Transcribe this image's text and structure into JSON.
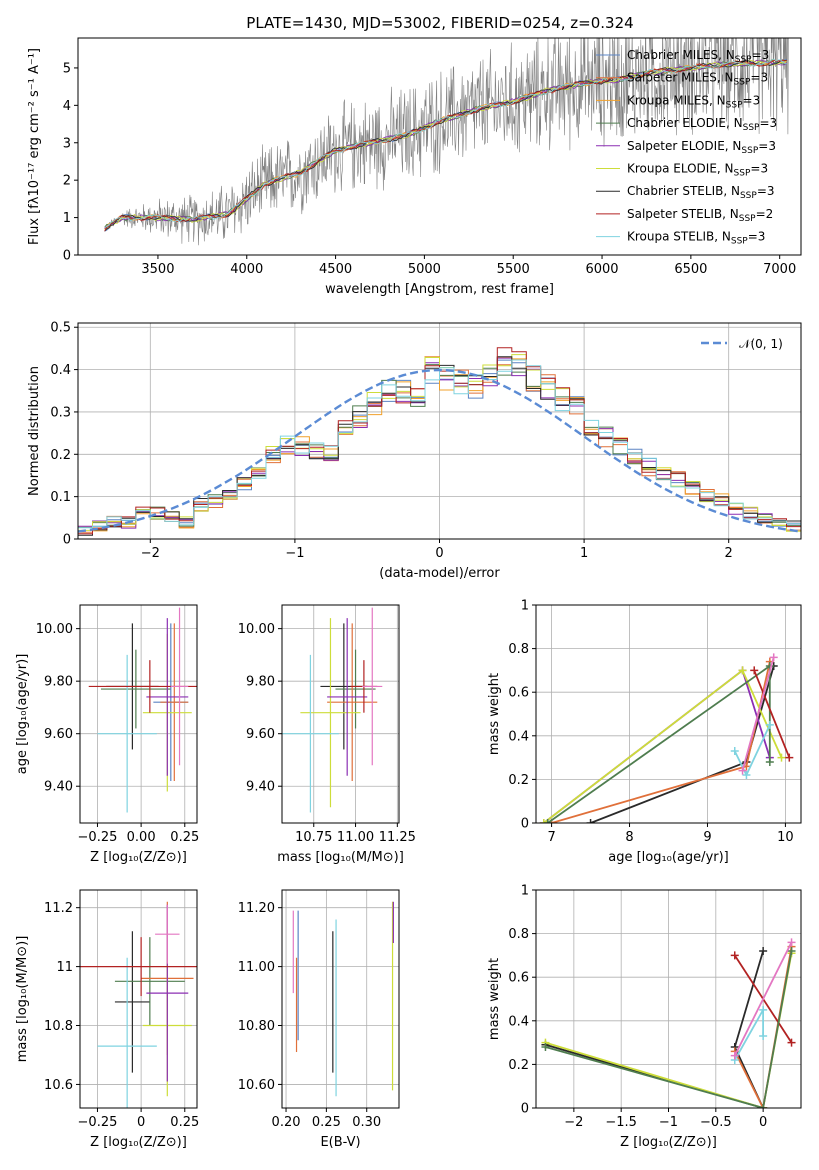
{
  "figure": {
    "title": "PLATE=1430, MJD=53002, FIBERID=0254, z=0.324"
  },
  "models": [
    {
      "name": "Chabrier MILES",
      "nssp": "3",
      "color": "#5b84c4"
    },
    {
      "name": "Salpeter MILES",
      "nssp": "3",
      "color": "#e0703a"
    },
    {
      "name": "Kroupa MILES",
      "nssp": "3",
      "color": "#f1a12b"
    },
    {
      "name": "Chabrier ELODIE",
      "nssp": "3",
      "color": "#4f7d4f"
    },
    {
      "name": "Salpeter ELODIE",
      "nssp": "3",
      "color": "#8b2fb3"
    },
    {
      "name": "Kroupa ELODIE",
      "nssp": "3",
      "color": "#cddd3a"
    },
    {
      "name": "Chabrier STELIB",
      "nssp": "3",
      "color": "#2a2a2a"
    },
    {
      "name": "Salpeter STELIB",
      "nssp": "2",
      "color": "#b22222"
    },
    {
      "name": "Kroupa STELIB",
      "nssp": "3",
      "color": "#7fd3e0"
    }
  ],
  "extra_colors": {
    "pink": "#e377c2",
    "gray_dark": "#555555",
    "data": "#808080",
    "gauss": "#5b8bd4"
  },
  "chart_data": [
    {
      "id": "spectrum",
      "type": "line",
      "xlabel": "wavelength [Angstrom, rest frame]",
      "ylabel": "Flux [fλ10⁻¹⁷ erg cm⁻² s⁻¹ A⁻¹]",
      "xlim": [
        3050,
        7120
      ],
      "ylim": [
        0,
        5.8
      ],
      "xticks": [
        3500,
        4000,
        4500,
        5000,
        5500,
        6000,
        6500,
        7000
      ],
      "yticks": [
        0,
        1,
        2,
        3,
        4,
        5
      ],
      "wave_range": [
        3200,
        7050
      ],
      "model_continuum": [
        [
          3200,
          0.7
        ],
        [
          3300,
          1.0
        ],
        [
          3500,
          1.0
        ],
        [
          3700,
          0.95
        ],
        [
          3900,
          1.1
        ],
        [
          4000,
          1.5
        ],
        [
          4100,
          1.9
        ],
        [
          4300,
          2.2
        ],
        [
          4500,
          2.8
        ],
        [
          4700,
          3.0
        ],
        [
          4900,
          3.2
        ],
        [
          5100,
          3.6
        ],
        [
          5300,
          3.9
        ],
        [
          5500,
          4.1
        ],
        [
          5700,
          4.4
        ],
        [
          5900,
          4.6
        ],
        [
          6100,
          4.7
        ],
        [
          6300,
          4.9
        ],
        [
          6500,
          5.0
        ],
        [
          6700,
          5.1
        ],
        [
          7000,
          5.15
        ]
      ],
      "data_noise": [
        [
          3200,
          0.1
        ],
        [
          3500,
          0.6
        ],
        [
          3800,
          0.9
        ],
        [
          4000,
          1.1
        ],
        [
          4500,
          1.4
        ],
        [
          5000,
          1.6
        ],
        [
          5500,
          1.8
        ],
        [
          6000,
          2.0
        ],
        [
          6500,
          2.1
        ],
        [
          7000,
          2.2
        ]
      ]
    },
    {
      "id": "residuals",
      "type": "line",
      "xlabel": "(data-model)/error",
      "ylabel": "Normed distribution",
      "xlim": [
        -2.5,
        2.5
      ],
      "ylim": [
        0,
        0.51
      ],
      "xticks": [
        -2,
        -1,
        0,
        1,
        2
      ],
      "yticks": [
        0.0,
        0.1,
        0.2,
        0.3,
        0.4,
        0.5
      ],
      "legend": "𝒩(0, 1)",
      "bin_edges_start": -2.5,
      "bin_width": 0.1,
      "hist_values": [
        0.02,
        0.03,
        0.04,
        0.04,
        0.07,
        0.06,
        0.05,
        0.04,
        0.08,
        0.09,
        0.11,
        0.13,
        0.15,
        0.2,
        0.22,
        0.22,
        0.21,
        0.2,
        0.26,
        0.29,
        0.32,
        0.35,
        0.35,
        0.34,
        0.4,
        0.38,
        0.37,
        0.36,
        0.39,
        0.42,
        0.41,
        0.38,
        0.36,
        0.33,
        0.31,
        0.26,
        0.24,
        0.22,
        0.19,
        0.17,
        0.16,
        0.14,
        0.12,
        0.1,
        0.09,
        0.07,
        0.06,
        0.05,
        0.04,
        0.03
      ]
    },
    {
      "id": "age-vs-Z",
      "type": "scatter",
      "xlabel": "Z [log₁₀(Z/Z⊙)]",
      "ylabel": "age  [log₁₀(age/yr)]",
      "xlim": [
        -0.35,
        0.32
      ],
      "ylim": [
        9.26,
        10.09
      ],
      "xticks": [
        -0.25,
        0.0,
        0.25
      ],
      "yticks": [
        9.4,
        9.6,
        9.8,
        10.0
      ],
      "points": [
        {
          "x": -0.05,
          "y": 9.78,
          "xerr": 0.15,
          "yerr": 0.24,
          "c": 6
        },
        {
          "x": -0.03,
          "y": 9.77,
          "xerr": 0.2,
          "yerr": 0.15,
          "c": 3
        },
        {
          "x": 0.17,
          "y": 9.72,
          "xerr": 0.1,
          "yerr": 0.3,
          "c": 0
        },
        {
          "x": 0.19,
          "y": 9.72,
          "xerr": 0.08,
          "yerr": 0.3,
          "c": 1
        },
        {
          "x": 0.15,
          "y": 9.68,
          "xerr": 0.14,
          "yerr": 0.3,
          "c": 5
        },
        {
          "x": 0.15,
          "y": 9.74,
          "xerr": 0.12,
          "yerr": 0.3,
          "c": 4
        },
        {
          "x": -0.08,
          "y": 9.6,
          "xerr": 0.17,
          "yerr": 0.3,
          "c": 8
        },
        {
          "x": 0.05,
          "y": 9.78,
          "xerr": 0.35,
          "yerr": 0.1,
          "c": 7
        },
        {
          "x": 0.22,
          "y": 9.78,
          "xerr": 0.05,
          "yerr": 0.3,
          "c": -1
        }
      ]
    },
    {
      "id": "age-vs-mass",
      "type": "scatter",
      "xlabel": "mass [log₁₀(M/M⊙)]",
      "ylabel": "",
      "xlim": [
        10.56,
        11.26
      ],
      "ylim": [
        9.26,
        10.09
      ],
      "xticks": [
        10.75,
        11.0,
        11.25
      ],
      "yticks": [
        9.4,
        9.6,
        9.8,
        10.0
      ],
      "points": [
        {
          "x": 10.93,
          "y": 9.78,
          "xerr": 0.14,
          "yerr": 0.24,
          "c": 6
        },
        {
          "x": 11.0,
          "y": 9.77,
          "xerr": 0.12,
          "yerr": 0.15,
          "c": 3
        },
        {
          "x": 10.98,
          "y": 9.72,
          "xerr": 0.15,
          "yerr": 0.3,
          "c": 1
        },
        {
          "x": 10.85,
          "y": 9.68,
          "xerr": 0.18,
          "yerr": 0.36,
          "c": 5
        },
        {
          "x": 10.95,
          "y": 9.74,
          "xerr": 0.12,
          "yerr": 0.3,
          "c": 4
        },
        {
          "x": 10.73,
          "y": 9.6,
          "xerr": 0.17,
          "yerr": 0.3,
          "c": 8
        },
        {
          "x": 11.05,
          "y": 9.78,
          "xerr": 0.08,
          "yerr": 0.1,
          "c": 7
        },
        {
          "x": 11.1,
          "y": 9.78,
          "xerr": 0.06,
          "yerr": 0.3,
          "c": -1
        }
      ]
    },
    {
      "id": "weight-vs-age",
      "type": "line",
      "xlabel": "age  [log₁₀(age/yr)]",
      "ylabel": "mass weight",
      "xlim": [
        6.8,
        10.2
      ],
      "ylim": [
        0,
        1.0
      ],
      "xticks": [
        7,
        8,
        9,
        10
      ],
      "yticks": [
        0.0,
        0.2,
        0.4,
        0.6,
        0.8,
        1.0
      ],
      "series": [
        {
          "c": 6,
          "pts": [
            [
              7.5,
              0.0
            ],
            [
              9.5,
              0.28
            ],
            [
              9.85,
              0.72
            ]
          ]
        },
        {
          "c": 1,
          "pts": [
            [
              7.0,
              0.0
            ],
            [
              9.5,
              0.26
            ],
            [
              9.8,
              0.74
            ]
          ]
        },
        {
          "c": 4,
          "pts": [
            [
              6.9,
              0.0
            ],
            [
              9.45,
              0.7
            ],
            [
              9.8,
              0.3
            ]
          ]
        },
        {
          "c": 5,
          "pts": [
            [
              6.9,
              0.0
            ],
            [
              9.45,
              0.7
            ],
            [
              9.95,
              0.3
            ]
          ]
        },
        {
          "c": 3,
          "pts": [
            [
              6.95,
              0.0
            ],
            [
              9.8,
              0.72
            ],
            [
              9.8,
              0.28
            ]
          ]
        },
        {
          "c": 7,
          "pts": [
            [
              9.6,
              0.7
            ],
            [
              10.05,
              0.3
            ]
          ]
        },
        {
          "c": 8,
          "pts": [
            [
              9.35,
              0.33
            ],
            [
              9.5,
              0.22
            ],
            [
              9.8,
              0.45
            ]
          ]
        },
        {
          "c": -1,
          "pts": [
            [
              9.45,
              0.24
            ],
            [
              9.85,
              0.76
            ]
          ]
        }
      ]
    },
    {
      "id": "mass-vs-Z",
      "type": "scatter",
      "xlabel": "Z [log₁₀(Z/Z⊙)]",
      "ylabel": "mass [log₁₀(M/M⊙)]",
      "xlim": [
        -0.35,
        0.32
      ],
      "ylim": [
        10.52,
        11.26
      ],
      "xticks": [
        -0.25,
        0.0,
        0.25
      ],
      "yticks": [
        10.6,
        10.8,
        11.0,
        11.2
      ],
      "points": [
        {
          "x": -0.05,
          "y": 10.88,
          "xerr": 0.1,
          "yerr": 0.24,
          "c": 6
        },
        {
          "x": 0.05,
          "y": 10.95,
          "xerr": 0.2,
          "yerr": 0.15,
          "c": 3
        },
        {
          "x": 0.15,
          "y": 10.96,
          "xerr": 0.15,
          "yerr": 0.26,
          "c": 1
        },
        {
          "x": 0.15,
          "y": 10.8,
          "xerr": 0.14,
          "yerr": 0.24,
          "c": 5
        },
        {
          "x": 0.15,
          "y": 10.91,
          "xerr": 0.12,
          "yerr": 0.3,
          "c": 4
        },
        {
          "x": -0.08,
          "y": 10.73,
          "xerr": 0.17,
          "yerr": 0.3,
          "c": 8
        },
        {
          "x": 0.0,
          "y": 11.0,
          "xerr": 0.35,
          "yerr": 0.1,
          "c": 7
        },
        {
          "x": 0.15,
          "y": 11.11,
          "xerr": 0.07,
          "yerr": 0.1,
          "c": -1
        }
      ]
    },
    {
      "id": "mass-vs-EBV",
      "type": "scatter",
      "xlabel": "E(B-V)",
      "ylabel": "",
      "xlim": [
        0.195,
        0.34
      ],
      "ylim": [
        10.52,
        11.26
      ],
      "xticks": [
        0.2,
        0.25,
        0.3
      ],
      "yticks": [
        10.6,
        10.8,
        11.0,
        11.2
      ],
      "points": [
        {
          "x": 0.215,
          "y": 10.97,
          "yerr": 0.22,
          "c": 0
        },
        {
          "x": 0.213,
          "y": 10.87,
          "yerr": 0.16,
          "c": 1
        },
        {
          "x": 0.209,
          "y": 11.05,
          "yerr": 0.14,
          "c": -1
        },
        {
          "x": 0.258,
          "y": 10.88,
          "yerr": 0.24,
          "c": 6
        },
        {
          "x": 0.262,
          "y": 10.86,
          "yerr": 0.3,
          "c": 8
        },
        {
          "x": 0.332,
          "y": 10.9,
          "yerr": 0.32,
          "c": 5
        },
        {
          "x": 0.333,
          "y": 11.15,
          "yerr": 0.07,
          "c": 4
        }
      ]
    },
    {
      "id": "weight-vs-Z",
      "type": "line",
      "xlabel": "Z [log₁₀(Z/Z⊙)]",
      "ylabel": "mass weight",
      "xlim": [
        -2.4,
        0.4
      ],
      "ylim": [
        0,
        1.0
      ],
      "xticks": [
        -2.0,
        -1.5,
        -1.0,
        -0.5,
        0.0
      ],
      "yticks": [
        0.0,
        0.2,
        0.4,
        0.6,
        0.8,
        1.0
      ],
      "series": [
        {
          "c": 6,
          "pts": [
            [
              -2.3,
              0.29
            ],
            [
              0.0,
              0.0
            ],
            [
              -0.3,
              0.28
            ],
            [
              0.0,
              0.72
            ]
          ]
        },
        {
          "c": 5,
          "pts": [
            [
              -2.3,
              0.3
            ],
            [
              0.0,
              0.0
            ],
            [
              0.3,
              0.71
            ]
          ]
        },
        {
          "c": 1,
          "pts": [
            [
              -0.3,
              0.26
            ],
            [
              0.0,
              0.0
            ],
            [
              0.3,
              0.74
            ]
          ]
        },
        {
          "c": 7,
          "pts": [
            [
              -0.3,
              0.7
            ],
            [
              0.3,
              0.3
            ]
          ]
        },
        {
          "c": 8,
          "pts": [
            [
              -0.3,
              0.22
            ],
            [
              0.0,
              0.45
            ],
            [
              0.0,
              0.33
            ]
          ]
        },
        {
          "c": 3,
          "pts": [
            [
              -2.3,
              0.28
            ],
            [
              0.0,
              0.0
            ],
            [
              0.3,
              0.72
            ]
          ]
        },
        {
          "c": -1,
          "pts": [
            [
              -0.3,
              0.24
            ],
            [
              0.3,
              0.76
            ]
          ]
        }
      ]
    }
  ]
}
